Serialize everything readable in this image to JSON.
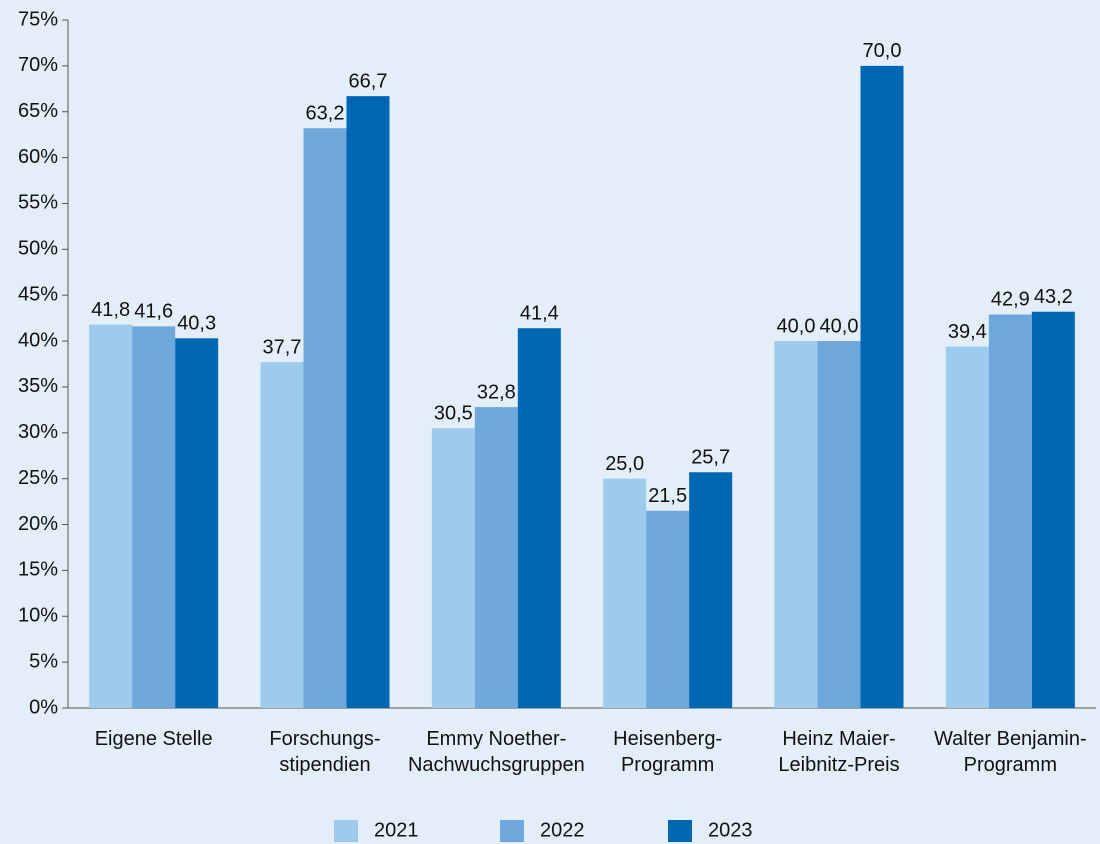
{
  "chart_data": {
    "type": "bar",
    "categories": [
      "Eigene Stelle",
      "Forschungs-\nstipendien",
      "Emmy Noether-\nNachwuchsgruppen",
      "Heisenberg-\nProgramm",
      "Heinz Maier-\nLeibnitz-Preis",
      "Walter Benjamin-\nProgramm"
    ],
    "series": [
      {
        "name": "2021",
        "color": "#9dcbee",
        "values": [
          41.8,
          37.7,
          30.5,
          25.0,
          40.0,
          39.4
        ],
        "value_labels": [
          "41,8",
          "37,7",
          "30,5",
          "25,0",
          "40,0",
          "39,4"
        ]
      },
      {
        "name": "2022",
        "color": "#6ea7db",
        "values": [
          41.6,
          63.2,
          32.8,
          21.5,
          40.0,
          42.9
        ],
        "value_labels": [
          "41,6",
          "63,2",
          "32,8",
          "21,5",
          "40,0",
          "42,9"
        ]
      },
      {
        "name": "2023",
        "color": "#0067b2",
        "values": [
          40.3,
          66.7,
          41.4,
          25.7,
          70.0,
          43.2
        ],
        "value_labels": [
          "40,3",
          "66,7",
          "41,4",
          "25,7",
          "70,0",
          "43,2"
        ]
      }
    ],
    "ylim": [
      0,
      75
    ],
    "yticks": [
      {
        "value": 0,
        "label": "0%"
      },
      {
        "value": 5,
        "label": "5%"
      },
      {
        "value": 10,
        "label": "10%"
      },
      {
        "value": 15,
        "label": "15%"
      },
      {
        "value": 20,
        "label": "20%"
      },
      {
        "value": 25,
        "label": "25%"
      },
      {
        "value": 30,
        "label": "30%"
      },
      {
        "value": 35,
        "label": "35%"
      },
      {
        "value": 40,
        "label": "40%"
      },
      {
        "value": 45,
        "label": "45%"
      },
      {
        "value": 50,
        "label": "50%"
      },
      {
        "value": 55,
        "label": "55%"
      },
      {
        "value": 60,
        "label": "60%"
      },
      {
        "value": 65,
        "label": "65%"
      },
      {
        "value": 70,
        "label": "70%"
      },
      {
        "value": 75,
        "label": "75%"
      }
    ],
    "legend": "bottom"
  }
}
